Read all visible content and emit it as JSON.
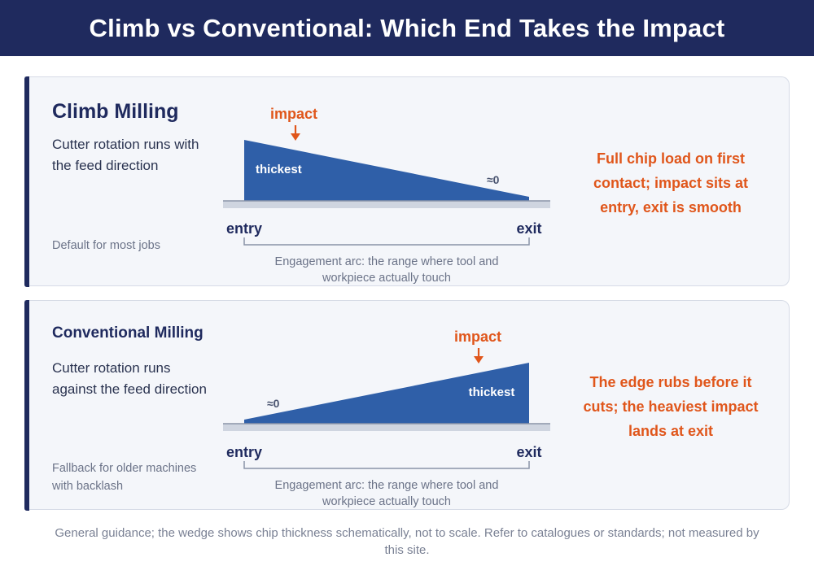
{
  "title": "Climb vs Conventional: Which End Takes the Impact",
  "colors": {
    "header": "#1f2a5e",
    "wedge": "#2f5fa8",
    "impact": "#e0561b",
    "baseline": "#cfd5e0"
  },
  "climb": {
    "title": "Climb Milling",
    "description": "Cutter rotation runs with the feed direction",
    "note": "Default for most jobs",
    "impact_label": "impact",
    "thick_label": "thickest",
    "zero_label": "≈0",
    "entry_label": "entry",
    "exit_label": "exit",
    "arc_line1": "Engagement arc: the range where tool and",
    "arc_line2": "workpiece actually touch",
    "summary": "Full chip load on first contact; impact sits at entry, exit is smooth"
  },
  "conventional": {
    "title": "Conventional Milling",
    "description": "Cutter rotation runs against the feed direction",
    "note": "Fallback for older machines with backlash",
    "impact_label": "impact",
    "thick_label": "thickest",
    "zero_label": "≈0",
    "entry_label": "entry",
    "exit_label": "exit",
    "arc_line1": "Engagement arc: the range where tool and",
    "arc_line2": "workpiece actually touch",
    "summary": "The edge rubs before it cuts; the heaviest impact lands at exit"
  },
  "footer": "General guidance; the wedge shows chip thickness schematically, not to scale. Refer to catalogues or standards; not measured by this site."
}
